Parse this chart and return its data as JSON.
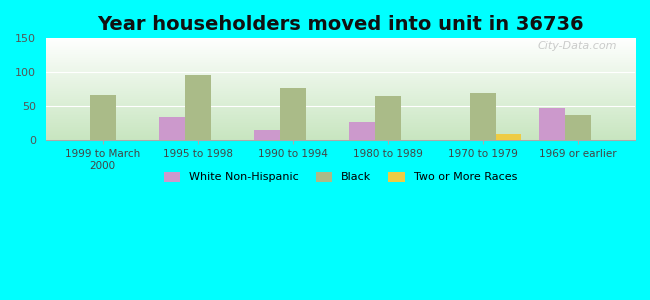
{
  "title": "Year householders moved into unit in 36736",
  "categories": [
    "1999 to March\n2000",
    "1995 to 1998",
    "1990 to 1994",
    "1980 to 1989",
    "1970 to 1979",
    "1969 or earlier"
  ],
  "series": {
    "White Non-Hispanic": [
      0,
      35,
      15,
      27,
      0,
      47
    ],
    "Black": [
      67,
      96,
      77,
      66,
      69,
      37
    ],
    "Two or More Races": [
      0,
      0,
      0,
      0,
      9,
      0
    ]
  },
  "colors": {
    "White Non-Hispanic": "#cc99cc",
    "Black": "#aabb88",
    "Two or More Races": "#eecc44"
  },
  "ylim": [
    0,
    150
  ],
  "yticks": [
    0,
    50,
    100,
    150
  ],
  "background_color": "#00ffff",
  "watermark": "City-Data.com",
  "bar_width": 0.27,
  "title_fontsize": 14
}
